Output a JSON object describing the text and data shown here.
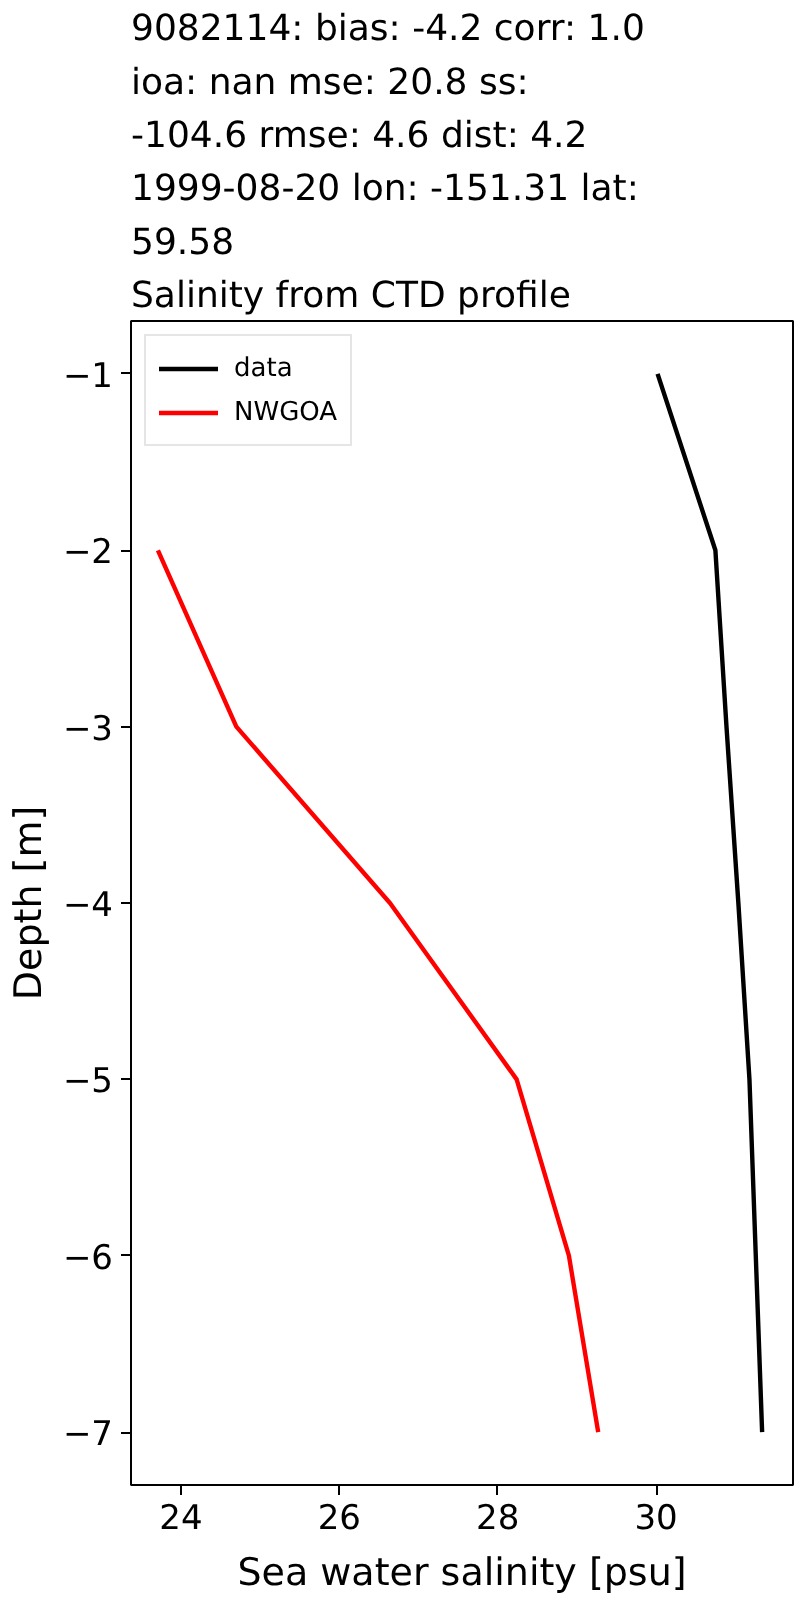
{
  "chart_data": {
    "type": "line",
    "title": "9082114: bias: -4.2  corr: 1.0\nioa: nan  mse: 20.8  ss:\n-104.6  rmse: 4.6  dist: 4.2\n1999-08-20 lon: -151.31 lat:\n59.58\nSalinity from CTD profile",
    "xlabel": "Sea water salinity [psu]",
    "ylabel": "Depth [m]",
    "xlim": [
      23.37,
      31.73
    ],
    "ylim": [
      -7.3,
      -0.7
    ],
    "xticks": [
      24,
      26,
      28,
      30
    ],
    "yticks": [
      {
        "value": -1,
        "label": "−1"
      },
      {
        "value": -2,
        "label": "−2"
      },
      {
        "value": -3,
        "label": "−3"
      },
      {
        "value": -4,
        "label": "−4"
      },
      {
        "value": -5,
        "label": "−5"
      },
      {
        "value": -6,
        "label": "−6"
      },
      {
        "value": -7,
        "label": "−7"
      }
    ],
    "legend": "top left",
    "series": [
      {
        "name": "data",
        "color": "#000000",
        "x": [
          30.02,
          30.75,
          30.89,
          31.04,
          31.18,
          31.26,
          31.34
        ],
        "values": [
          -1,
          -2,
          -3,
          -4,
          -5,
          -6,
          -7
        ]
      },
      {
        "name": "NWGOA",
        "color": "#ff0000",
        "x": [
          23.71,
          24.7,
          26.64,
          28.24,
          28.9,
          29.27
        ],
        "values": [
          -2,
          -3,
          -4,
          -5,
          -6,
          -7
        ]
      }
    ]
  }
}
